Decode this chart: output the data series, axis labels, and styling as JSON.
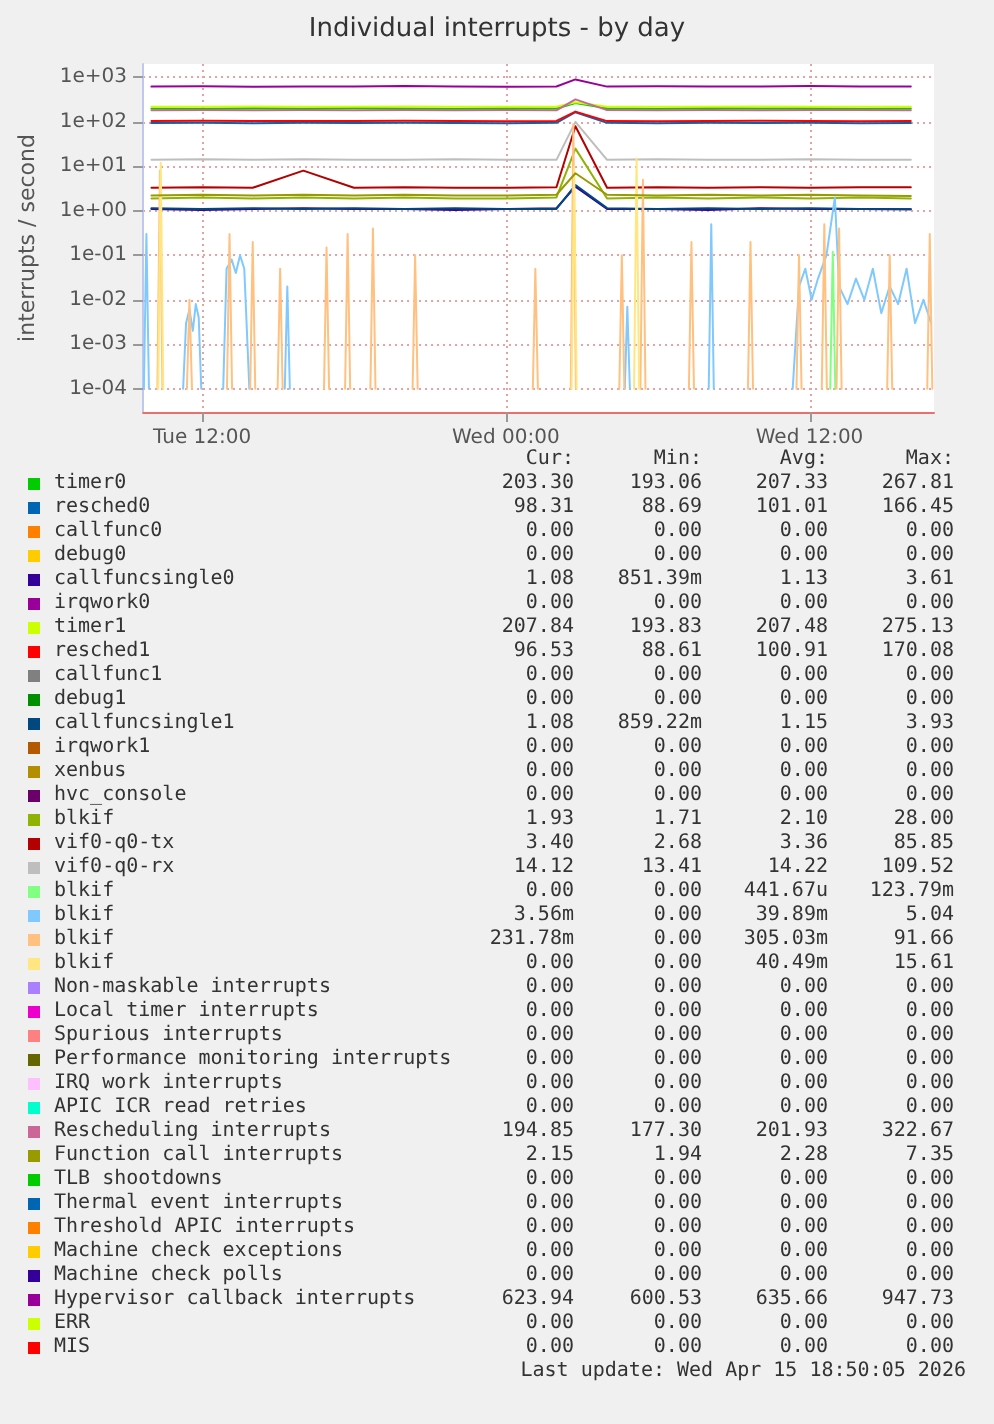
{
  "chart_data": {
    "type": "line",
    "title": "Individual interrupts - by day",
    "ylabel": "interrupts / second",
    "log": "y",
    "grid": true,
    "legend": "bottom",
    "x": [
      "2026-04-14T10:00",
      "2026-04-14T12:00",
      "2026-04-14T14:00",
      "2026-04-14T16:00",
      "2026-04-14T18:00",
      "2026-04-14T20:00",
      "2026-04-14T22:00",
      "2026-04-15T00:00",
      "2026-04-15T02:00",
      "2026-04-15T02:45",
      "2026-04-15T04:00",
      "2026-04-15T06:00",
      "2026-04-15T08:00",
      "2026-04-15T10:00",
      "2026-04-15T12:00",
      "2026-04-15T14:00",
      "2026-04-15T16:00"
    ],
    "xlim": [
      "2026-04-14T09:40",
      "2026-04-15T16:55"
    ],
    "xticks": [
      {
        "value": "2026-04-14T12:00",
        "label": "Tue 12:00"
      },
      {
        "value": "2026-04-15T00:00",
        "label": "Wed 00:00"
      },
      {
        "value": "2026-04-15T12:00",
        "label": "Wed 12:00"
      }
    ],
    "ylim": [
      3e-05,
      2000
    ],
    "yticks": [
      {
        "value": 0.0001,
        "label": "1e-04"
      },
      {
        "value": 0.001,
        "label": "1e-03"
      },
      {
        "value": 0.01,
        "label": "1e-02"
      },
      {
        "value": 0.1,
        "label": "1e-01"
      },
      {
        "value": 1,
        "label": "1e+00"
      },
      {
        "value": 10,
        "label": "1e+01"
      },
      {
        "value": 100,
        "label": "1e+02"
      },
      {
        "value": 1000,
        "label": "1e+03"
      }
    ],
    "series": [
      {
        "name": "timer0",
        "color": "#00cc00",
        "values": [
          200,
          198,
          202,
          200,
          204,
          200,
          198,
          202,
          200,
          265,
          202,
          198,
          204,
          200,
          202,
          198,
          200
        ]
      },
      {
        "name": "resched0",
        "color": "#0066b3",
        "values": [
          94,
          95,
          93,
          95,
          94,
          96,
          94,
          93,
          95,
          165,
          95,
          93,
          96,
          94,
          95,
          93,
          94
        ]
      },
      {
        "name": "callfunc0",
        "color": "#ff8000",
        "values": [
          null,
          null,
          null,
          null,
          null,
          null,
          null,
          null,
          null,
          null,
          null,
          null,
          null,
          null,
          null,
          null,
          null
        ]
      },
      {
        "name": "debug0",
        "color": "#ffcc00",
        "values": [
          null,
          null,
          null,
          null,
          null,
          null,
          null,
          null,
          null,
          null,
          null,
          null,
          null,
          null,
          null,
          null,
          null
        ]
      },
      {
        "name": "callfuncsingle0",
        "color": "#330099",
        "values": [
          1.1,
          1.05,
          1.1,
          1.15,
          1.1,
          1.1,
          1.05,
          1.1,
          1.15,
          3.5,
          1.1,
          1.1,
          1.05,
          1.15,
          1.1,
          1.1,
          1.08
        ]
      },
      {
        "name": "irqwork0",
        "color": "#990099",
        "values": [
          null,
          null,
          null,
          null,
          null,
          null,
          null,
          null,
          null,
          null,
          null,
          null,
          null,
          null,
          null,
          null,
          null
        ]
      },
      {
        "name": "timer1",
        "color": "#ccff00",
        "values": [
          220,
          218,
          222,
          218,
          220,
          222,
          218,
          220,
          218,
          275,
          220,
          218,
          220,
          222,
          218,
          220,
          220
        ]
      },
      {
        "name": "resched1",
        "color": "#ff0000",
        "values": [
          104,
          106,
          104,
          105,
          104,
          106,
          104,
          103,
          105,
          170,
          104,
          103,
          105,
          106,
          104,
          103,
          104
        ]
      },
      {
        "name": "callfunc1",
        "color": "#808080",
        "values": [
          null,
          null,
          null,
          null,
          null,
          null,
          null,
          null,
          null,
          null,
          null,
          null,
          null,
          null,
          null,
          null,
          null
        ]
      },
      {
        "name": "debug1",
        "color": "#008f00",
        "values": [
          null,
          null,
          null,
          null,
          null,
          null,
          null,
          null,
          null,
          null,
          null,
          null,
          null,
          null,
          null,
          null,
          null
        ]
      },
      {
        "name": "callfuncsingle1",
        "color": "#00487d",
        "values": [
          1.15,
          1.1,
          1.15,
          1.1,
          1.15,
          1.1,
          1.15,
          1.1,
          1.1,
          3.8,
          1.15,
          1.1,
          1.15,
          1.1,
          1.15,
          1.1,
          1.08
        ]
      },
      {
        "name": "irqwork1",
        "color": "#b35a00",
        "values": [
          null,
          null,
          null,
          null,
          null,
          null,
          null,
          null,
          null,
          null,
          null,
          null,
          null,
          null,
          null,
          null,
          null
        ]
      },
      {
        "name": "xenbus",
        "color": "#b38f00",
        "values": [
          null,
          null,
          null,
          null,
          null,
          null,
          null,
          null,
          null,
          null,
          null,
          null,
          null,
          null,
          null,
          null,
          null
        ]
      },
      {
        "name": "hvc_console",
        "color": "#6b006b",
        "values": [
          null,
          null,
          null,
          null,
          null,
          null,
          null,
          null,
          null,
          null,
          null,
          null,
          null,
          null,
          null,
          null,
          null
        ]
      },
      {
        "name": "blkif",
        "color": "#8fb300",
        "values": [
          1.9,
          2,
          1.9,
          2,
          1.9,
          2,
          1.9,
          1.9,
          2,
          25,
          1.9,
          2,
          1.9,
          2,
          1.9,
          2,
          1.9
        ]
      },
      {
        "name": "vif0-q0-tx",
        "color": "#b30000",
        "values": [
          3.3,
          3.4,
          3.3,
          8,
          3.3,
          3.4,
          3.3,
          3.3,
          3.4,
          80,
          3.3,
          3.4,
          3.3,
          3.4,
          3.3,
          3.4,
          3.4
        ]
      },
      {
        "name": "vif0-q0-rx",
        "color": "#bebebe",
        "values": [
          14,
          14.5,
          14,
          14.5,
          14,
          14,
          14.5,
          14,
          14,
          100,
          14,
          14.5,
          14,
          14,
          14.5,
          14,
          14
        ]
      },
      {
        "name": "blkif",
        "color": "#80ff80",
        "x": [
          "2026-04-15T12:49",
          "2026-04-15T12:55",
          "2026-04-15T13:01"
        ],
        "values": [
          0.0001,
          0.12,
          0.0001
        ]
      },
      {
        "name": "blkif",
        "color": "#80c9ff",
        "x": [
          "2026-04-14T09:42",
          "2026-04-14T09:48",
          "2026-04-14T09:54",
          "2026-04-14T09:55",
          "2026-04-14T11:15",
          "2026-04-14T11:22",
          "2026-04-14T11:30",
          "2026-04-14T11:38",
          "2026-04-14T11:45",
          "2026-04-14T11:52",
          "2026-04-14T11:58",
          "2026-04-14T11:59",
          "2026-04-14T12:50",
          "2026-04-14T12:58",
          "2026-04-14T13:10",
          "2026-04-14T13:20",
          "2026-04-14T13:30",
          "2026-04-14T13:40",
          "2026-04-14T13:52",
          "2026-04-14T13:53",
          "2026-04-14T15:16",
          "2026-04-14T15:22",
          "2026-04-14T15:28",
          "2026-04-14T15:29",
          "2026-04-15T04:42",
          "2026-04-15T04:48",
          "2026-04-15T04:54",
          "2026-04-15T04:55",
          "2026-04-15T08:01",
          "2026-04-15T08:07",
          "2026-04-15T08:13",
          "2026-04-15T08:14",
          "2026-04-15T11:20",
          "2026-04-15T11:35",
          "2026-04-15T11:50",
          "2026-04-15T12:05",
          "2026-04-15T12:20",
          "2026-04-15T12:40",
          "2026-04-15T13:00",
          "2026-04-15T13:10",
          "2026-04-15T13:30",
          "2026-04-15T13:50",
          "2026-04-15T14:10",
          "2026-04-15T14:30",
          "2026-04-15T14:50",
          "2026-04-15T15:10",
          "2026-04-15T15:30",
          "2026-04-15T15:50",
          "2026-04-15T16:10",
          "2026-04-15T16:30",
          "2026-04-15T16:48"
        ],
        "values": [
          0.0001,
          0.3,
          0.0001,
          null,
          0.0001,
          0.003,
          0.006,
          0.002,
          0.008,
          0.004,
          0.0001,
          null,
          0.0001,
          0.05,
          0.08,
          0.04,
          0.1,
          0.05,
          0.0001,
          null,
          0.0001,
          0.02,
          0.0001,
          null,
          0.0001,
          0.007,
          0.0001,
          null,
          0.0001,
          0.5,
          0.0001,
          null,
          0.0001,
          0.02,
          0.05,
          0.01,
          0.03,
          0.1,
          2,
          0.02,
          0.008,
          0.03,
          0.01,
          0.05,
          0.005,
          0.02,
          0.008,
          0.05,
          0.003,
          0.01,
          0.003
        ]
      },
      {
        "name": "blkif",
        "color": "#ffc080",
        "x": [
          "2026-04-14T10:14",
          "2026-04-14T10:20",
          "2026-04-14T10:26",
          "2026-04-14T10:27",
          "2026-04-14T11:24",
          "2026-04-14T11:30",
          "2026-04-14T11:36",
          "2026-04-14T11:37",
          "2026-04-14T12:59",
          "2026-04-14T13:05",
          "2026-04-14T13:11",
          "2026-04-14T13:12",
          "2026-04-14T13:54",
          "2026-04-14T14:00",
          "2026-04-14T14:06",
          "2026-04-14T14:07",
          "2026-04-14T14:59",
          "2026-04-14T15:05",
          "2026-04-14T15:11",
          "2026-04-14T15:12",
          "2026-04-14T16:49",
          "2026-04-14T16:55",
          "2026-04-14T17:01",
          "2026-04-14T17:02",
          "2026-04-14T17:39",
          "2026-04-14T17:45",
          "2026-04-14T17:51",
          "2026-04-14T17:52",
          "2026-04-14T18:39",
          "2026-04-14T18:45",
          "2026-04-14T18:51",
          "2026-04-14T18:52",
          "2026-04-14T20:19",
          "2026-04-14T20:25",
          "2026-04-14T20:31",
          "2026-04-14T20:32",
          "2026-04-15T01:04",
          "2026-04-15T01:10",
          "2026-04-15T01:16",
          "2026-04-15T01:17",
          "2026-04-15T02:34",
          "2026-04-15T02:40",
          "2026-04-15T02:46",
          "2026-04-15T02:47",
          "2026-04-15T04:29",
          "2026-04-15T04:35",
          "2026-04-15T04:41",
          "2026-04-15T04:42",
          "2026-04-15T05:19",
          "2026-04-15T05:25",
          "2026-04-15T05:31",
          "2026-04-15T05:32",
          "2026-04-15T07:14",
          "2026-04-15T07:20",
          "2026-04-15T07:26",
          "2026-04-15T07:27",
          "2026-04-15T09:34",
          "2026-04-15T09:40",
          "2026-04-15T09:46",
          "2026-04-15T09:47",
          "2026-04-15T11:29",
          "2026-04-15T11:35",
          "2026-04-15T11:41",
          "2026-04-15T11:42",
          "2026-04-15T12:29",
          "2026-04-15T12:35",
          "2026-04-15T12:41",
          "2026-04-15T12:42",
          "2026-04-15T13:04",
          "2026-04-15T13:10",
          "2026-04-15T13:16",
          "2026-04-15T13:17",
          "2026-04-15T15:04",
          "2026-04-15T15:10",
          "2026-04-15T15:16",
          "2026-04-15T15:17",
          "2026-04-15T16:39",
          "2026-04-15T16:45",
          "2026-04-15T16:51"
        ],
        "values": [
          0.0001,
          8,
          0.0001,
          null,
          0.0001,
          0.01,
          0.0001,
          null,
          0.0001,
          0.3,
          0.0001,
          null,
          0.0001,
          0.2,
          0.0001,
          null,
          0.0001,
          0.05,
          0.0001,
          null,
          0.0001,
          0.15,
          0.0001,
          null,
          0.0001,
          0.3,
          0.0001,
          null,
          0.0001,
          0.4,
          0.0001,
          null,
          0.0001,
          0.1,
          0.0001,
          null,
          0.0001,
          0.05,
          0.0001,
          null,
          0.0001,
          90,
          0.0001,
          null,
          0.0001,
          0.1,
          0.0001,
          null,
          0.0001,
          5,
          0.0001,
          null,
          0.0001,
          0.2,
          0.0001,
          null,
          0.0001,
          0.2,
          0.0001,
          null,
          0.0001,
          0.1,
          0.0001,
          null,
          0.0001,
          0.5,
          0.0001,
          null,
          0.0001,
          0.4,
          0.0001,
          null,
          0.0001,
          0.1,
          0.0001,
          null,
          0.0001,
          0.3,
          0.0001
        ]
      },
      {
        "name": "blkif",
        "color": "#ffe680",
        "x": [
          "2026-04-14T10:16",
          "2026-04-14T10:22",
          "2026-04-14T10:28",
          "2026-04-14T10:29",
          "2026-04-15T02:36",
          "2026-04-15T02:42",
          "2026-04-15T02:48",
          "2026-04-15T02:49",
          "2026-04-15T05:04",
          "2026-04-15T05:10",
          "2026-04-15T05:16"
        ],
        "values": [
          0.0001,
          12,
          0.0001,
          null,
          0.0001,
          10,
          0.0001,
          null,
          0.0001,
          15,
          0.0001
        ]
      },
      {
        "name": "Non-maskable interrupts",
        "color": "#aa80ff",
        "values": [
          null,
          null,
          null,
          null,
          null,
          null,
          null,
          null,
          null,
          null,
          null,
          null,
          null,
          null,
          null,
          null,
          null
        ]
      },
      {
        "name": "Local timer interrupts",
        "color": "#ee00cc",
        "values": [
          null,
          null,
          null,
          null,
          null,
          null,
          null,
          null,
          null,
          null,
          null,
          null,
          null,
          null,
          null,
          null,
          null
        ]
      },
      {
        "name": "Spurious interrupts",
        "color": "#ff8080",
        "values": [
          null,
          null,
          null,
          null,
          null,
          null,
          null,
          null,
          null,
          null,
          null,
          null,
          null,
          null,
          null,
          null,
          null
        ]
      },
      {
        "name": "Performance monitoring interrupts",
        "color": "#666600",
        "values": [
          null,
          null,
          null,
          null,
          null,
          null,
          null,
          null,
          null,
          null,
          null,
          null,
          null,
          null,
          null,
          null,
          null
        ]
      },
      {
        "name": "IRQ work interrupts",
        "color": "#ffbfff",
        "values": [
          null,
          null,
          null,
          null,
          null,
          null,
          null,
          null,
          null,
          null,
          null,
          null,
          null,
          null,
          null,
          null,
          null
        ]
      },
      {
        "name": "APIC ICR read retries",
        "color": "#00ffcc",
        "values": [
          null,
          null,
          null,
          null,
          null,
          null,
          null,
          null,
          null,
          null,
          null,
          null,
          null,
          null,
          null,
          null,
          null
        ]
      },
      {
        "name": "Rescheduling interrupts",
        "color": "#cc6699",
        "values": [
          182,
          184,
          182,
          185,
          182,
          184,
          182,
          184,
          182,
          320,
          184,
          182,
          184,
          182,
          185,
          184,
          182
        ]
      },
      {
        "name": "Function call interrupts",
        "color": "#999900",
        "values": [
          2.2,
          2.3,
          2.2,
          2.3,
          2.2,
          2.3,
          2.2,
          2.2,
          2.3,
          7,
          2.3,
          2.2,
          2.3,
          2.2,
          2.3,
          2.2,
          2.15
        ]
      },
      {
        "name": "TLB shootdowns",
        "color": "#00cc00",
        "values": [
          null,
          null,
          null,
          null,
          null,
          null,
          null,
          null,
          null,
          null,
          null,
          null,
          null,
          null,
          null,
          null,
          null
        ]
      },
      {
        "name": "Thermal event interrupts",
        "color": "#0066b3",
        "values": [
          null,
          null,
          null,
          null,
          null,
          null,
          null,
          null,
          null,
          null,
          null,
          null,
          null,
          null,
          null,
          null,
          null
        ]
      },
      {
        "name": "Threshold APIC interrupts",
        "color": "#ff8000",
        "values": [
          null,
          null,
          null,
          null,
          null,
          null,
          null,
          null,
          null,
          null,
          null,
          null,
          null,
          null,
          null,
          null,
          null
        ]
      },
      {
        "name": "Machine check exceptions",
        "color": "#ffcc00",
        "values": [
          null,
          null,
          null,
          null,
          null,
          null,
          null,
          null,
          null,
          null,
          null,
          null,
          null,
          null,
          null,
          null,
          null
        ]
      },
      {
        "name": "Machine check polls",
        "color": "#330099",
        "values": [
          null,
          null,
          null,
          null,
          null,
          null,
          null,
          null,
          null,
          null,
          null,
          null,
          null,
          null,
          null,
          null,
          null
        ]
      },
      {
        "name": "Hypervisor callback interrupts",
        "color": "#990099",
        "values": [
          620,
          630,
          615,
          625,
          620,
          640,
          620,
          615,
          625,
          900,
          620,
          630,
          620,
          625,
          640,
          620,
          625
        ]
      },
      {
        "name": "ERR",
        "color": "#ccff00",
        "values": [
          null,
          null,
          null,
          null,
          null,
          null,
          null,
          null,
          null,
          null,
          null,
          null,
          null,
          null,
          null,
          null,
          null
        ]
      },
      {
        "name": "MIS",
        "color": "#ff0000",
        "values": [
          null,
          null,
          null,
          null,
          null,
          null,
          null,
          null,
          null,
          null,
          null,
          null,
          null,
          null,
          null,
          null,
          null
        ]
      }
    ],
    "annotations": [
      "Cur: Min: Avg: Max:",
      "203.30 193.06 207.33 267.81",
      "98.31 88.69 101.01 166.45",
      "0.00 0.00 0.00 0.00",
      "0.00 0.00 0.00 0.00",
      "1.08 851.39m 1.13 3.61",
      "0.00 0.00 0.00 0.00",
      "207.84 193.83 207.48 275.13",
      "96.53 88.61 100.91 170.08",
      "0.00 0.00 0.00 0.00",
      "0.00 0.00 0.00 0.00",
      "1.08 859.22m 1.15 3.93",
      "0.00 0.00 0.00 0.00",
      "0.00 0.00 0.00 0.00",
      "0.00 0.00 0.00 0.00",
      "1.93 1.71 2.10 28.00",
      "3.40 2.68 3.36 85.85",
      "14.12 13.41 14.22 109.52",
      "0.00 0.00 441.67u 123.79m",
      "3.56m 0.00 39.89m 5.04",
      "231.78m 0.00 305.03m 91.66",
      "0.00 0.00 40.49m 15.61",
      "0.00 0.00 0.00 0.00",
      "0.00 0.00 0.00 0.00",
      "0.00 0.00 0.00 0.00",
      "0.00 0.00 0.00 0.00",
      "0.00 0.00 0.00 0.00",
      "0.00 0.00 0.00 0.00",
      "194.85 177.30 201.93 322.67",
      "2.15 1.94 2.28 7.35",
      "0.00 0.00 0.00 0.00",
      "0.00 0.00 0.00 0.00",
      "0.00 0.00 0.00 0.00",
      "0.00 0.00 0.00 0.00",
      "0.00 0.00 0.00 0.00",
      "623.94 600.53 635.66 947.73",
      "0.00 0.00 0.00 0.00",
      "0.00 0.00 0.00 0.00",
      "Last update: Wed Apr 15 18:50:05 2026"
    ]
  }
}
